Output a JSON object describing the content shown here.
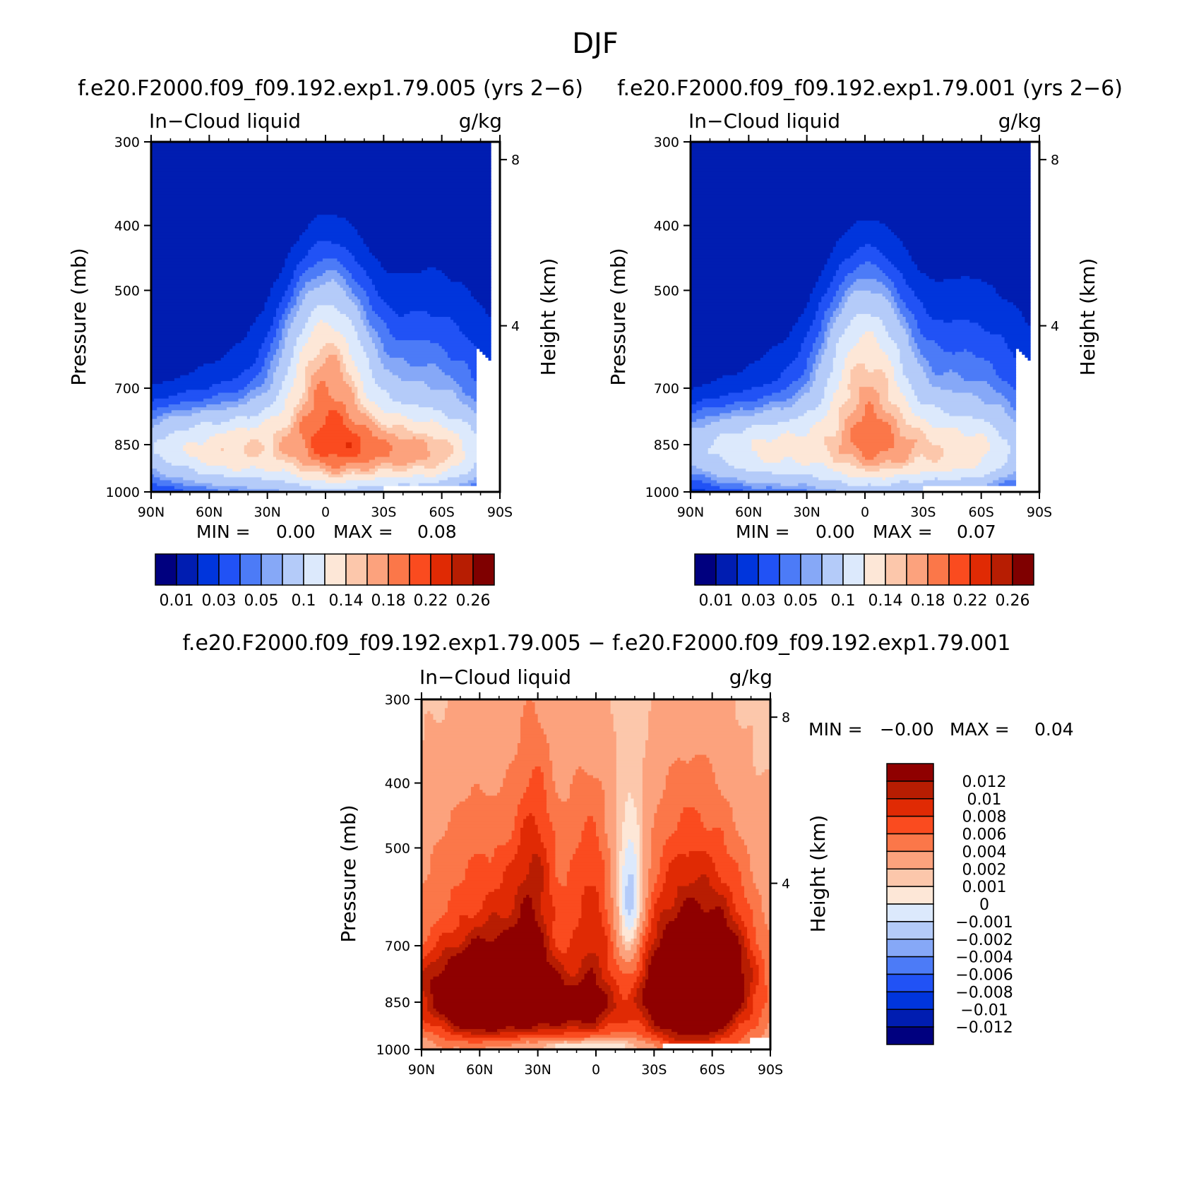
{
  "figure_title": "DJF",
  "colors": {
    "seq": [
      "#00007f",
      "#001db1",
      "#0035dc",
      "#2152f5",
      "#4c7bf7",
      "#86a8f7",
      "#b4cbf9",
      "#dce9fc",
      "#fde7d7",
      "#fcc7ab",
      "#fca27d",
      "#fb7749",
      "#fa4b1f",
      "#e02a04",
      "#b71d02",
      "#7f0000"
    ],
    "diff": [
      "#00007f",
      "#001db1",
      "#0035dc",
      "#2152f5",
      "#4c7bf7",
      "#86a8f7",
      "#b4cbf9",
      "#dce9fc",
      "#fde7d7",
      "#fcc7ab",
      "#fca27d",
      "#fb7749",
      "#fa4b1f",
      "#e02a04",
      "#b71d02",
      "#8f0000"
    ],
    "land_mask": "#ffffff"
  },
  "chart_data": [
    {
      "type": "heatmap",
      "title": "f.e20.F2000.f09_f09.192.exp1.79.005 (yrs 2−6)",
      "left_label": "In−Cloud liquid",
      "right_label": "g/kg",
      "ylabel": "Pressure (mb)",
      "ylabel_right": "Height (km)",
      "x_ticks": [
        "90N",
        "60N",
        "30N",
        "0",
        "30S",
        "60S",
        "90S"
      ],
      "y_ticks": [
        "300",
        "400",
        "500",
        "700",
        "850",
        "1000"
      ],
      "y_ticks_right": [
        "8",
        "4"
      ],
      "min_label": "MIN =",
      "min_value": "0.00",
      "max_label": "MAX =",
      "max_value": "0.08",
      "colorbar_labels": [
        "0.01",
        "0.03",
        "0.05",
        "0.1",
        "0.14",
        "0.18",
        "0.22",
        "0.26"
      ],
      "levels": [
        0,
        0.01,
        0.02,
        0.03,
        0.04,
        0.05,
        0.075,
        0.1,
        0.125,
        0.14,
        0.16,
        0.18,
        0.2,
        0.22,
        0.24,
        0.26
      ]
    },
    {
      "type": "heatmap",
      "title": "f.e20.F2000.f09_f09.192.exp1.79.001 (yrs 2−6)",
      "left_label": "In−Cloud liquid",
      "right_label": "g/kg",
      "ylabel": "Pressure (mb)",
      "ylabel_right": "Height (km)",
      "x_ticks": [
        "90N",
        "60N",
        "30N",
        "0",
        "30S",
        "60S",
        "90S"
      ],
      "y_ticks": [
        "300",
        "400",
        "500",
        "700",
        "850",
        "1000"
      ],
      "y_ticks_right": [
        "8",
        "4"
      ],
      "min_label": "MIN =",
      "min_value": "0.00",
      "max_label": "MAX =",
      "max_value": "0.07",
      "colorbar_labels": [
        "0.01",
        "0.03",
        "0.05",
        "0.1",
        "0.14",
        "0.18",
        "0.22",
        "0.26"
      ],
      "levels": [
        0,
        0.01,
        0.02,
        0.03,
        0.04,
        0.05,
        0.075,
        0.1,
        0.125,
        0.14,
        0.16,
        0.18,
        0.2,
        0.22,
        0.24,
        0.26
      ]
    },
    {
      "type": "heatmap",
      "title": "f.e20.F2000.f09_f09.192.exp1.79.005 − f.e20.F2000.f09_f09.192.exp1.79.001",
      "left_label": "In−Cloud liquid",
      "right_label": "g/kg",
      "ylabel": "Pressure (mb)",
      "ylabel_right": "Height (km)",
      "x_ticks": [
        "90N",
        "60N",
        "30N",
        "0",
        "30S",
        "60S",
        "90S"
      ],
      "y_ticks": [
        "300",
        "400",
        "500",
        "700",
        "850",
        "1000"
      ],
      "y_ticks_right": [
        "8",
        "4"
      ],
      "min_label": "MIN =",
      "min_value": "−0.00",
      "max_label": "MAX =",
      "max_value": "0.04",
      "colorbar_labels": [
        "0.012",
        "0.01",
        "0.008",
        "0.006",
        "0.004",
        "0.002",
        "0.001",
        "0",
        "−0.001",
        "−0.002",
        "−0.004",
        "−0.006",
        "−0.008",
        "−0.01",
        "−0.012"
      ]
    }
  ]
}
